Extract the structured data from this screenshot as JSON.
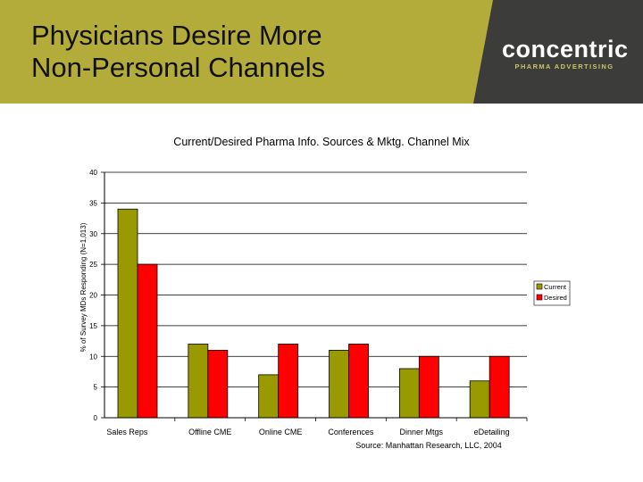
{
  "slide": {
    "title_lines": [
      "Physicians Desire More",
      "Non-Personal Channels"
    ],
    "logo": {
      "word": "concentric",
      "tagline": "PHARMA ADVERTISING"
    },
    "source": "Source: Manhattan Research, LLC, 2004"
  },
  "colors": {
    "header_bg": "#b4ac3a",
    "logo_bg": "#3c3c3a",
    "current": "#999900",
    "desired": "#ff0000"
  },
  "chart_data": {
    "type": "bar",
    "title": "Current/Desired Pharma Info. Sources & Mktg. Channel Mix",
    "ylabel": "% of Survey MDs Responding (N=1,013)",
    "xlabel": "",
    "categories": [
      "Sales Reps",
      "Offline CME",
      "Online CME",
      "Conferences",
      "Dinner Mtgs",
      "eDetailing"
    ],
    "series": [
      {
        "name": "Current",
        "values": [
          34,
          12,
          7,
          11,
          8,
          6
        ]
      },
      {
        "name": "Desired",
        "values": [
          25,
          11,
          12,
          12,
          10,
          10
        ]
      }
    ],
    "ylim": [
      0,
      40
    ],
    "yticks": [
      0,
      5,
      10,
      15,
      20,
      25,
      30,
      35,
      40
    ],
    "grid": true,
    "legend_position": "right"
  }
}
